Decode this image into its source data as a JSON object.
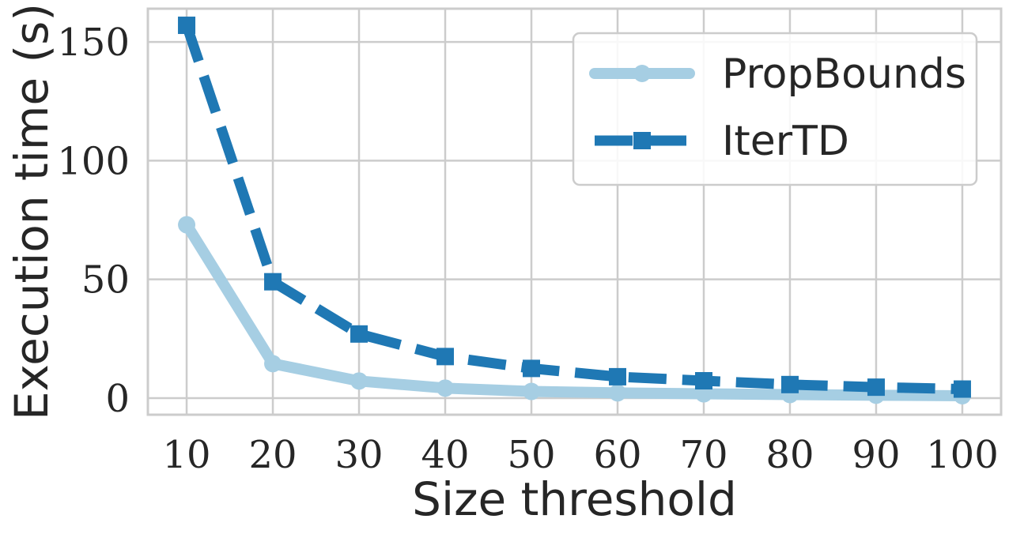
{
  "chart_data": {
    "type": "line",
    "title": "",
    "xlabel": "Size threshold",
    "ylabel": "Execution time (s)",
    "x": [
      10,
      20,
      30,
      40,
      50,
      60,
      70,
      80,
      90,
      100
    ],
    "x_ticks": [
      10,
      20,
      30,
      40,
      50,
      60,
      70,
      80,
      90,
      100
    ],
    "y_ticks": [
      0,
      50,
      100,
      150
    ],
    "xlim": [
      5.5,
      104.5
    ],
    "ylim": [
      -7,
      164
    ],
    "grid": true,
    "legend_position": "top-right",
    "series": [
      {
        "name": "PropBounds",
        "values": [
          73,
          14.5,
          7.2,
          4.2,
          2.8,
          2.2,
          1.8,
          1.5,
          1.2,
          1.0
        ],
        "color": "#a6cee3",
        "line_style": "solid",
        "marker": "circle"
      },
      {
        "name": "IterTD",
        "values": [
          157,
          49,
          27,
          17.5,
          12.5,
          9,
          7.3,
          5.7,
          4.6,
          3.8
        ],
        "color": "#1f78b4",
        "line_style": "dashed",
        "marker": "square"
      }
    ]
  }
}
